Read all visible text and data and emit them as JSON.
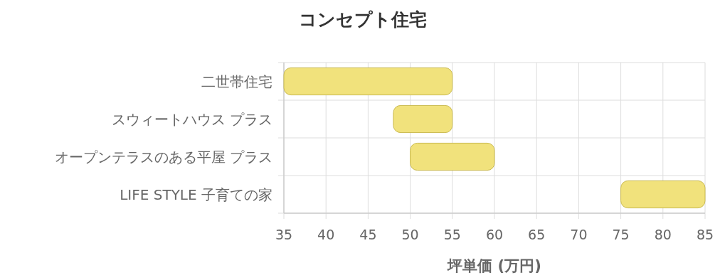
{
  "chart_data": {
    "type": "bar",
    "orientation": "horizontal",
    "title": "コンセプト住宅",
    "xlabel": "坪単価 (万円)",
    "categories": [
      "二世帯住宅",
      "スウィートハウス プラス",
      "オープンテラスのある平屋 プラス",
      "LIFE STYLE 子育ての家"
    ],
    "base": [
      35,
      48,
      50,
      75
    ],
    "values": [
      20,
      7,
      10,
      10
    ],
    "color": "#f1e27c",
    "xlim": [
      35,
      85
    ],
    "xticks": [
      35,
      40,
      45,
      50,
      55,
      60,
      65,
      70,
      75,
      80,
      85
    ],
    "grid": true
  }
}
